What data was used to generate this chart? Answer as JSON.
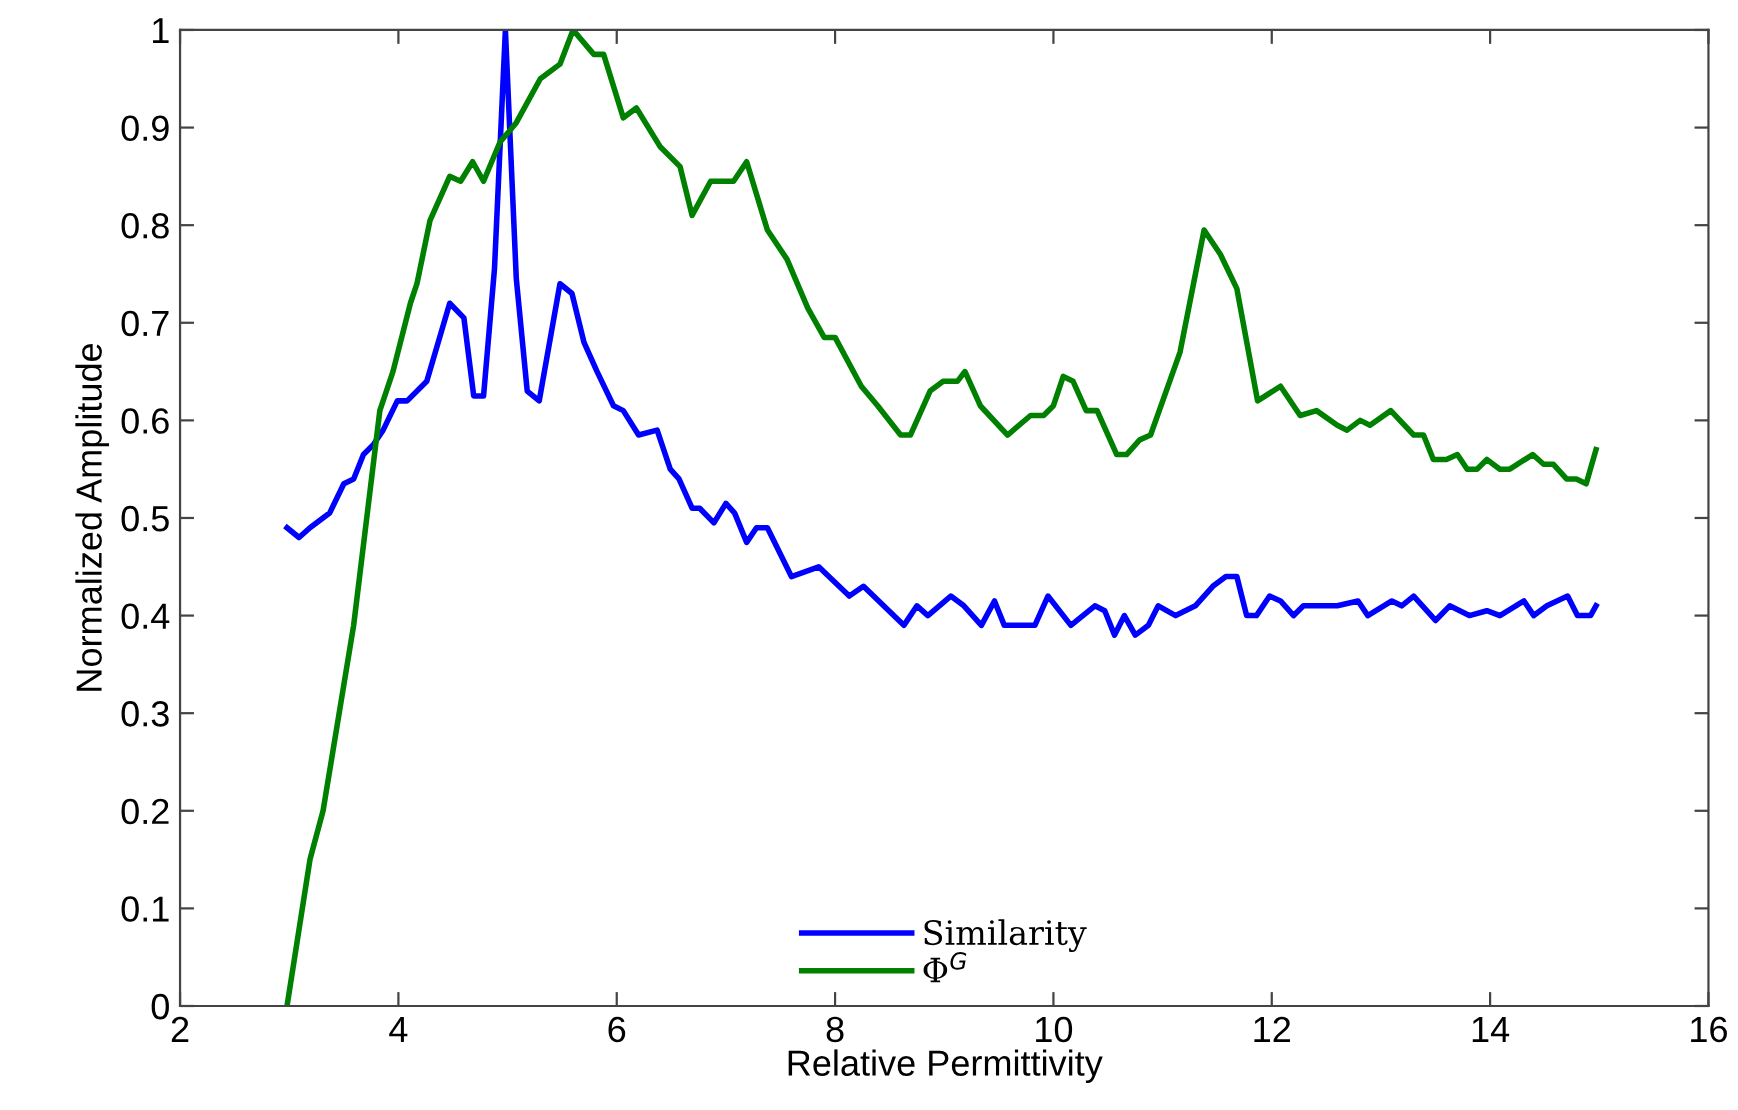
{
  "chart_data": {
    "type": "line",
    "xlabel": "Relative Permittivity",
    "ylabel": "Normalized Amplitude",
    "xlim": [
      2,
      16
    ],
    "ylim": [
      0,
      1
    ],
    "xticks": [
      2,
      4,
      6,
      8,
      10,
      12,
      14,
      16
    ],
    "yticks": [
      0,
      0.1,
      0.2,
      0.3,
      0.4,
      0.5,
      0.6,
      0.7,
      0.8,
      0.9,
      1
    ],
    "grid": false,
    "legend": "bottom",
    "marker": "none",
    "line_style": "solid",
    "series": [
      {
        "name": "Similarity",
        "color": "#0000ff",
        "x": [
          2.98,
          3.09,
          3.19,
          3.37,
          3.5,
          3.59,
          3.68,
          3.77,
          3.86,
          3.99,
          4.08,
          4.26,
          4.47,
          4.6,
          4.69,
          4.78,
          4.88,
          4.98,
          5.08,
          5.18,
          5.29,
          5.48,
          5.59,
          5.7,
          5.82,
          5.97,
          6.06,
          6.2,
          6.37,
          6.49,
          6.57,
          6.69,
          6.76,
          6.89,
          7.0,
          7.08,
          7.19,
          7.28,
          7.38,
          7.6,
          7.85,
          8.13,
          8.26,
          8.63,
          8.75,
          8.85,
          9.06,
          9.18,
          9.34,
          9.46,
          9.55,
          9.83,
          9.95,
          10.16,
          10.38,
          10.47,
          10.56,
          10.65,
          10.75,
          10.87,
          10.96,
          11.12,
          11.3,
          11.46,
          11.58,
          11.68,
          11.77,
          11.86,
          11.98,
          12.08,
          12.2,
          12.29,
          12.48,
          12.6,
          12.79,
          12.88,
          13.1,
          13.19,
          13.3,
          13.5,
          13.63,
          13.81,
          13.97,
          14.09,
          14.31,
          14.4,
          14.52,
          14.71,
          14.8,
          14.92,
          14.97
        ],
        "values": [
          0.49,
          0.48,
          0.49,
          0.505,
          0.535,
          0.54,
          0.565,
          0.575,
          0.59,
          0.62,
          0.62,
          0.64,
          0.72,
          0.705,
          0.625,
          0.625,
          0.755,
          1.0,
          0.745,
          0.63,
          0.62,
          0.74,
          0.73,
          0.68,
          0.65,
          0.615,
          0.61,
          0.585,
          0.59,
          0.55,
          0.54,
          0.51,
          0.51,
          0.495,
          0.515,
          0.505,
          0.475,
          0.49,
          0.49,
          0.44,
          0.45,
          0.42,
          0.43,
          0.39,
          0.41,
          0.4,
          0.42,
          0.41,
          0.39,
          0.415,
          0.39,
          0.39,
          0.42,
          0.39,
          0.41,
          0.405,
          0.38,
          0.4,
          0.38,
          0.39,
          0.41,
          0.4,
          0.41,
          0.43,
          0.44,
          0.44,
          0.4,
          0.4,
          0.42,
          0.415,
          0.4,
          0.41,
          0.41,
          0.41,
          0.415,
          0.4,
          0.415,
          0.41,
          0.42,
          0.395,
          0.41,
          0.4,
          0.405,
          0.4,
          0.415,
          0.4,
          0.41,
          0.42,
          0.4,
          0.4,
          0.41
        ]
      },
      {
        "name": "Φ$^{G}$",
        "color": "#008000",
        "x": [
          2.98,
          3.19,
          3.31,
          3.59,
          3.83,
          3.95,
          4.11,
          4.17,
          4.29,
          4.47,
          4.57,
          4.68,
          4.78,
          4.93,
          5.08,
          5.3,
          5.48,
          5.6,
          5.79,
          5.88,
          6.06,
          6.18,
          6.4,
          6.58,
          6.69,
          6.86,
          7.07,
          7.19,
          7.38,
          7.56,
          7.75,
          7.9,
          8.0,
          8.24,
          8.39,
          8.6,
          8.69,
          8.87,
          8.99,
          9.12,
          9.19,
          9.33,
          9.58,
          9.79,
          9.91,
          10.0,
          10.09,
          10.18,
          10.3,
          10.4,
          10.58,
          10.67,
          10.79,
          10.89,
          11.16,
          11.38,
          11.53,
          11.68,
          11.87,
          12.08,
          12.26,
          12.41,
          12.6,
          12.69,
          12.81,
          12.9,
          13.09,
          13.3,
          13.39,
          13.48,
          13.6,
          13.7,
          13.79,
          13.88,
          13.97,
          14.09,
          14.18,
          14.39,
          14.49,
          14.58,
          14.7,
          14.79,
          14.88,
          14.97
        ],
        "values": [
          0.0,
          0.15,
          0.2,
          0.39,
          0.61,
          0.65,
          0.72,
          0.74,
          0.805,
          0.85,
          0.845,
          0.865,
          0.845,
          0.885,
          0.905,
          0.95,
          0.965,
          1.0,
          0.975,
          0.975,
          0.91,
          0.92,
          0.88,
          0.86,
          0.81,
          0.845,
          0.845,
          0.865,
          0.795,
          0.765,
          0.715,
          0.685,
          0.685,
          0.635,
          0.615,
          0.585,
          0.585,
          0.63,
          0.64,
          0.64,
          0.65,
          0.615,
          0.585,
          0.605,
          0.605,
          0.615,
          0.645,
          0.64,
          0.61,
          0.61,
          0.565,
          0.565,
          0.58,
          0.585,
          0.67,
          0.795,
          0.77,
          0.735,
          0.62,
          0.635,
          0.605,
          0.61,
          0.595,
          0.59,
          0.6,
          0.595,
          0.61,
          0.585,
          0.585,
          0.56,
          0.56,
          0.565,
          0.55,
          0.55,
          0.56,
          0.55,
          0.55,
          0.565,
          0.555,
          0.555,
          0.54,
          0.54,
          0.535,
          0.57
        ]
      }
    ]
  }
}
